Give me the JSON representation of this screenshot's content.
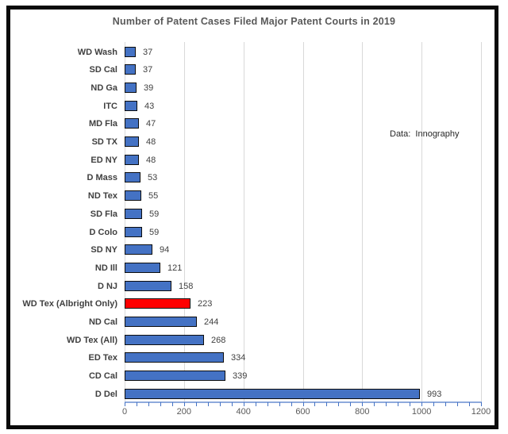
{
  "title": "Number of Patent Cases Filed Major Patent Courts in 2019",
  "annotation": "Data:  Innography",
  "colors": {
    "bar_fill": "#4472C4",
    "bar_highlight_fill": "#FF0000",
    "bar_border": "#0d0d0d",
    "gridline": "#d9d9d9",
    "axis_line": "#8EAADC",
    "tick": "#4472C4",
    "title_text": "#595959",
    "label_text": "#404040"
  },
  "chart_data": {
    "type": "bar",
    "orientation": "horizontal",
    "title": "Number of Patent Cases Filed Major Patent Courts in 2019",
    "categories": [
      "WD Wash",
      "SD Cal",
      "ND Ga",
      "ITC",
      "MD Fla",
      "SD TX",
      "ED NY",
      "D Mass",
      "ND Tex",
      "SD Fla",
      "D Colo",
      "SD NY",
      "ND Ill",
      "D NJ",
      "WD Tex (Albright Only)",
      "ND Cal",
      "WD Tex (All)",
      "ED Tex",
      "CD Cal",
      "D Del"
    ],
    "values": [
      37,
      37,
      39,
      43,
      47,
      48,
      48,
      53,
      55,
      59,
      59,
      94,
      121,
      158,
      223,
      244,
      268,
      334,
      339,
      993
    ],
    "highlight_category": "WD Tex (Albright Only)",
    "data_labels": true,
    "xlim": [
      0,
      1200
    ],
    "x_major_ticks": [
      0,
      200,
      400,
      600,
      800,
      1000,
      1200
    ],
    "x_minor_tick_step": 40,
    "grid": "vertical-major",
    "legend": "none",
    "annotation": "Data:  Innography"
  }
}
